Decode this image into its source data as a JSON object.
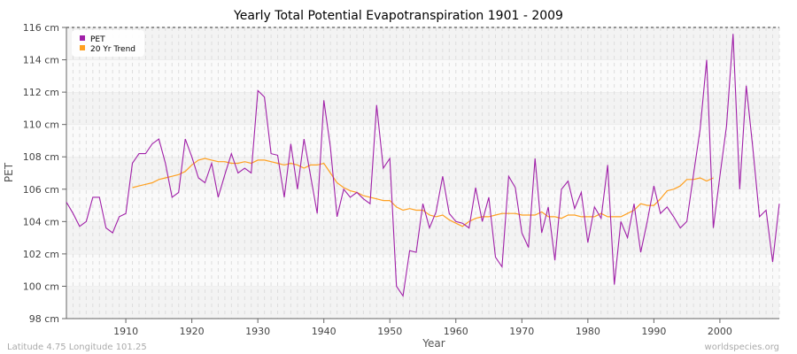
{
  "chart_data": {
    "type": "line",
    "title": "Yearly Total Potential Evapotranspiration 1901 - 2009",
    "xlabel": "Year",
    "ylabel": "PET",
    "xlim": [
      1901,
      2009
    ],
    "ylim": [
      98,
      116
    ],
    "y_unit": "cm",
    "y_ticks": [
      98,
      100,
      102,
      104,
      106,
      108,
      110,
      112,
      114,
      116
    ],
    "y_tick_labels": [
      "98 cm",
      "100 cm",
      "102 cm",
      "104 cm",
      "106 cm",
      "108 cm",
      "110 cm",
      "112 cm",
      "114 cm",
      "116 cm"
    ],
    "x_ticks": [
      1910,
      1920,
      1930,
      1940,
      1950,
      1960,
      1970,
      1980,
      1990,
      2000
    ],
    "x_tick_labels": [
      "1910",
      "1920",
      "1930",
      "1940",
      "1950",
      "1960",
      "1970",
      "1980",
      "1990",
      "2000"
    ],
    "grid": true,
    "legend_position": "top-left",
    "series": [
      {
        "name": "PET",
        "color": "#a020a8",
        "x_start": 1901,
        "values": [
          105.2,
          104.5,
          103.7,
          104.0,
          105.5,
          105.5,
          103.6,
          103.3,
          104.3,
          104.5,
          107.6,
          108.2,
          108.2,
          108.8,
          109.1,
          107.6,
          105.5,
          105.8,
          109.1,
          108.0,
          106.7,
          106.4,
          107.6,
          105.5,
          106.9,
          108.2,
          107.0,
          107.3,
          107.0,
          112.1,
          111.7,
          108.2,
          108.1,
          105.5,
          108.8,
          106.0,
          109.1,
          106.8,
          104.5,
          111.5,
          108.6,
          104.3,
          106.0,
          105.5,
          105.8,
          105.4,
          105.1,
          111.2,
          107.3,
          107.9,
          100.0,
          99.4,
          102.2,
          102.1,
          105.1,
          103.6,
          104.6,
          106.8,
          104.5,
          104.0,
          103.9,
          103.6,
          106.1,
          104.0,
          105.5,
          101.8,
          101.2,
          106.8,
          106.1,
          103.3,
          102.4,
          107.9,
          103.3,
          104.9,
          101.6,
          106.0,
          106.5,
          104.8,
          105.8,
          102.7,
          104.9,
          104.2,
          107.5,
          100.1,
          104.0,
          103.0,
          105.1,
          102.1,
          104.0,
          106.2,
          104.5,
          104.9,
          104.3,
          103.6,
          104.0,
          106.9,
          109.7,
          114.0,
          103.6,
          106.8,
          109.9,
          115.6,
          106.0,
          112.4,
          108.5,
          104.3,
          104.7,
          101.5,
          105.1
        ]
      },
      {
        "name": "20 Yr Trend",
        "color": "#ffa020",
        "x_start": 1911,
        "values": [
          106.1,
          106.2,
          106.3,
          106.4,
          106.6,
          106.7,
          106.8,
          106.9,
          107.1,
          107.5,
          107.8,
          107.9,
          107.8,
          107.7,
          107.7,
          107.6,
          107.6,
          107.7,
          107.6,
          107.8,
          107.8,
          107.7,
          107.6,
          107.5,
          107.6,
          107.5,
          107.3,
          107.5,
          107.5,
          107.6,
          107.0,
          106.4,
          106.1,
          105.9,
          105.8,
          105.6,
          105.5,
          105.4,
          105.3,
          105.3,
          104.9,
          104.7,
          104.8,
          104.7,
          104.7,
          104.4,
          104.3,
          104.4,
          104.1,
          103.9,
          103.7,
          104.0,
          104.2,
          104.3,
          104.3,
          104.4,
          104.5,
          104.5,
          104.5,
          104.4,
          104.4,
          104.4,
          104.6,
          104.3,
          104.3,
          104.2,
          104.4,
          104.4,
          104.3,
          104.3,
          104.3,
          104.5,
          104.3,
          104.3,
          104.3,
          104.5,
          104.7,
          105.1,
          105.0,
          105.0,
          105.4,
          105.9,
          106.0,
          106.2,
          106.6,
          106.6,
          106.7,
          106.5,
          106.7
        ]
      }
    ]
  },
  "footer": {
    "location": "Latitude 4.75 Longitude 101.25",
    "source": "worldspecies.org"
  }
}
